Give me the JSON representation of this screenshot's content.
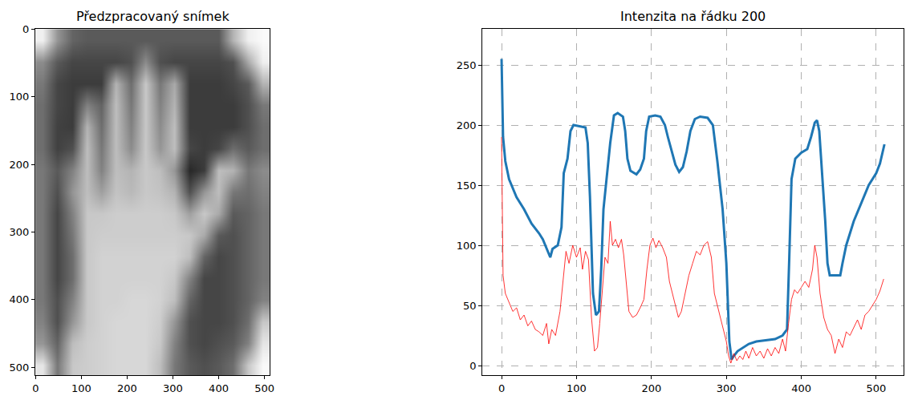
{
  "chart_data": [
    {
      "type": "heatmap",
      "title": "Předzpracovaný snímek",
      "x": [
        16,
        48,
        80,
        112,
        144,
        176,
        208,
        240,
        272,
        304,
        336,
        368,
        400,
        432,
        464,
        496
      ],
      "y": [
        16,
        48,
        80,
        112,
        144,
        176,
        208,
        240,
        272,
        304,
        336,
        368,
        400,
        432,
        464,
        496
      ],
      "z": [
        [
          240,
          150,
          100,
          90,
          90,
          90,
          90,
          90,
          90,
          90,
          90,
          90,
          90,
          180,
          240,
          250
        ],
        [
          140,
          90,
          70,
          70,
          70,
          70,
          80,
          140,
          80,
          70,
          70,
          70,
          70,
          80,
          170,
          240
        ],
        [
          120,
          70,
          60,
          60,
          60,
          180,
          110,
          200,
          120,
          170,
          60,
          60,
          60,
          70,
          90,
          180
        ],
        [
          110,
          70,
          60,
          130,
          100,
          190,
          120,
          200,
          130,
          180,
          60,
          60,
          60,
          60,
          80,
          120
        ],
        [
          110,
          65,
          60,
          180,
          110,
          190,
          130,
          200,
          140,
          190,
          60,
          60,
          60,
          60,
          80,
          110
        ],
        [
          110,
          65,
          80,
          190,
          120,
          190,
          140,
          200,
          150,
          190,
          70,
          60,
          70,
          110,
          90,
          110
        ],
        [
          120,
          90,
          130,
          190,
          130,
          190,
          180,
          200,
          190,
          150,
          40,
          60,
          190,
          180,
          120,
          140
        ],
        [
          120,
          80,
          150,
          190,
          160,
          195,
          185,
          200,
          195,
          180,
          80,
          150,
          190,
          120,
          110,
          130
        ],
        [
          120,
          70,
          130,
          200,
          200,
          205,
          205,
          205,
          205,
          200,
          160,
          200,
          170,
          90,
          100,
          120
        ],
        [
          120,
          70,
          120,
          200,
          205,
          205,
          205,
          205,
          205,
          205,
          200,
          170,
          90,
          80,
          100,
          120
        ],
        [
          120,
          70,
          110,
          200,
          210,
          210,
          210,
          210,
          210,
          210,
          190,
          100,
          70,
          80,
          100,
          120
        ],
        [
          120,
          70,
          110,
          200,
          210,
          210,
          210,
          210,
          210,
          200,
          130,
          70,
          70,
          80,
          100,
          120
        ],
        [
          120,
          80,
          130,
          200,
          210,
          210,
          215,
          215,
          210,
          190,
          100,
          70,
          70,
          80,
          100,
          130
        ],
        [
          130,
          80,
          150,
          200,
          210,
          215,
          215,
          215,
          205,
          150,
          80,
          70,
          70,
          80,
          110,
          200
        ],
        [
          150,
          100,
          190,
          205,
          210,
          215,
          215,
          215,
          200,
          130,
          80,
          70,
          80,
          90,
          130,
          230
        ],
        [
          230,
          120,
          200,
          205,
          210,
          215,
          215,
          215,
          190,
          120,
          90,
          80,
          90,
          110,
          200,
          250
        ]
      ],
      "zlim": [
        0,
        255
      ],
      "xlim": [
        -0.5,
        511.5
      ],
      "ylim": [
        511.5,
        -0.5
      ],
      "xticks": [
        0,
        100,
        200,
        300,
        400,
        500
      ],
      "yticks": [
        0,
        100,
        200,
        300,
        400,
        500
      ]
    },
    {
      "type": "line",
      "title": "Intenzita na řádku 200",
      "series": [
        {
          "color": "#1f77b4",
          "x": [
            0,
            2,
            5,
            10,
            20,
            30,
            40,
            50,
            55,
            60,
            65,
            68,
            75,
            80,
            83,
            88,
            92,
            96,
            105,
            112,
            115,
            118,
            122,
            126,
            130,
            133,
            136,
            140,
            145,
            150,
            155,
            162,
            165,
            168,
            172,
            180,
            185,
            190,
            193,
            197,
            205,
            212,
            218,
            222,
            227,
            232,
            237,
            242,
            247,
            252,
            258,
            265,
            275,
            282,
            288,
            295,
            300,
            304,
            307,
            310,
            315,
            322,
            330,
            340,
            355,
            365,
            375,
            381,
            384,
            387,
            392,
            400,
            408,
            413,
            418,
            421,
            424,
            428,
            432,
            435,
            438,
            445,
            452,
            455,
            460,
            470,
            480,
            490,
            500,
            505,
            511
          ],
          "values": [
            255,
            190,
            170,
            155,
            140,
            130,
            118,
            110,
            105,
            98,
            90,
            97,
            100,
            115,
            160,
            172,
            195,
            200,
            199,
            198,
            185,
            140,
            60,
            42,
            45,
            80,
            130,
            155,
            185,
            208,
            210,
            207,
            195,
            172,
            162,
            159,
            163,
            172,
            195,
            207,
            208,
            207,
            200,
            190,
            178,
            167,
            161,
            165,
            178,
            195,
            205,
            207,
            206,
            200,
            170,
            130,
            85,
            20,
            5,
            8,
            12,
            15,
            18,
            20,
            21,
            22,
            25,
            30,
            90,
            155,
            172,
            177,
            180,
            190,
            202,
            204,
            195,
            160,
            120,
            85,
            75,
            75,
            75,
            85,
            100,
            120,
            135,
            150,
            160,
            168,
            184
          ]
        },
        {
          "color": "#ff0000",
          "x": [
            0,
            2,
            5,
            10,
            15,
            20,
            25,
            30,
            35,
            40,
            45,
            50,
            55,
            60,
            63,
            67,
            72,
            78,
            82,
            86,
            90,
            95,
            100,
            105,
            108,
            112,
            116,
            120,
            124,
            128,
            131,
            134,
            138,
            142,
            145,
            148,
            152,
            156,
            160,
            163,
            166,
            170,
            175,
            180,
            185,
            190,
            194,
            198,
            202,
            206,
            210,
            215,
            220,
            224,
            228,
            232,
            236,
            240,
            245,
            250,
            255,
            260,
            265,
            270,
            275,
            280,
            284,
            288,
            292,
            296,
            300,
            303,
            306,
            310,
            314,
            318,
            322,
            326,
            330,
            335,
            340,
            345,
            350,
            355,
            360,
            365,
            370,
            375,
            379,
            383,
            387,
            391,
            395,
            400,
            405,
            410,
            415,
            418,
            421,
            425,
            430,
            435,
            440,
            445,
            450,
            455,
            460,
            465,
            470,
            475,
            480,
            485,
            490,
            495,
            500,
            505,
            510
          ],
          "values": [
            190,
            75,
            60,
            52,
            45,
            48,
            38,
            42,
            33,
            37,
            30,
            28,
            25,
            35,
            18,
            30,
            25,
            45,
            70,
            95,
            85,
            100,
            90,
            98,
            80,
            95,
            88,
            40,
            12,
            15,
            35,
            60,
            90,
            85,
            120,
            100,
            105,
            98,
            105,
            92,
            70,
            45,
            40,
            42,
            48,
            55,
            80,
            100,
            106,
            98,
            104,
            98,
            90,
            70,
            60,
            50,
            40,
            45,
            60,
            75,
            85,
            95,
            92,
            100,
            103,
            90,
            60,
            50,
            40,
            30,
            20,
            8,
            2,
            10,
            4,
            8,
            5,
            12,
            6,
            15,
            8,
            12,
            6,
            14,
            8,
            15,
            10,
            22,
            12,
            35,
            55,
            63,
            60,
            65,
            70,
            65,
            80,
            100,
            90,
            60,
            40,
            30,
            25,
            10,
            22,
            15,
            28,
            25,
            32,
            38,
            30,
            42,
            45,
            50,
            55,
            62,
            72
          ]
        }
      ],
      "xlim": [
        -25.5,
        536.5
      ],
      "ylim": [
        -8,
        280
      ],
      "xticks": [
        0,
        100,
        200,
        300,
        400,
        500
      ],
      "yticks": [
        0,
        50,
        100,
        150,
        200,
        250
      ],
      "grid": true
    }
  ]
}
